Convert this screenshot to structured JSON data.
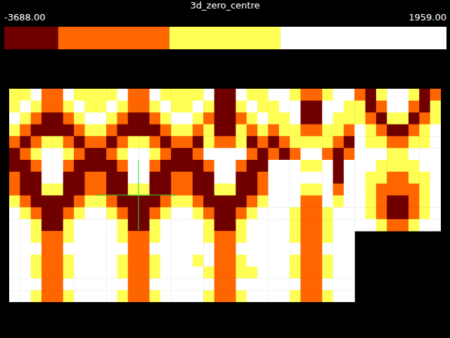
{
  "chart_data": {
    "type": "heatmap",
    "title": "3d_zero_centre",
    "colorbar_range": [
      -3688,
      1959
    ],
    "colorbar_ticks": [
      {
        "value": -3688,
        "label": "-3688.00"
      },
      {
        "value": 1959,
        "label": "1959.00"
      }
    ],
    "color_thresholds": [
      -3000,
      -1580,
      -160
    ],
    "colors": [
      "#700000",
      "#ff6600",
      "#ffff55",
      "#ffffff"
    ],
    "cells": [
      [
        [
          -900,
          -900,
          1000,
          -2300,
          -2300,
          1000,
          -900,
          -900
        ],
        [
          -900,
          1000,
          -900,
          -2300,
          -2300,
          -900,
          1000,
          -900
        ],
        [
          1000,
          -900,
          -2300,
          -3300,
          -3300,
          -2300,
          -900,
          1000
        ],
        [
          -900,
          -2300,
          -3300,
          -3300,
          -3300,
          -3300,
          -2300,
          -900
        ],
        [
          -2300,
          -3300,
          -2300,
          -900,
          -900,
          -2300,
          -3300,
          -2300
        ],
        [
          -3300,
          -2300,
          -900,
          1000,
          1000,
          -900,
          -2300,
          -3300
        ]
      ],
      [
        [
          -900,
          -900,
          1000,
          -2300,
          -2300,
          1000,
          -900,
          -900
        ],
        [
          -900,
          1000,
          -900,
          -2300,
          -2300,
          -900,
          1000,
          -900
        ],
        [
          1000,
          -900,
          -2300,
          -3300,
          -3300,
          -2300,
          -900,
          1000
        ],
        [
          -900,
          -2300,
          -3300,
          -3300,
          -3300,
          -3300,
          -2300,
          -900
        ],
        [
          -2300,
          -3300,
          -2300,
          -900,
          -900,
          -2300,
          -3300,
          -2300
        ],
        [
          -3300,
          -2300,
          -900,
          1000,
          1000,
          -900,
          -2300,
          -3300
        ]
      ],
      [
        [
          -900,
          -900,
          1000,
          -3300,
          -3300,
          1000,
          -900,
          -900
        ],
        [
          -900,
          1000,
          -900,
          -3300,
          -3300,
          -900,
          1000,
          -900
        ],
        [
          1000,
          -900,
          -2300,
          -3300,
          -3300,
          -2300,
          -900,
          1000
        ],
        [
          -900,
          -2300,
          -900,
          -3300,
          -3300,
          -900,
          -2300,
          -900
        ],
        [
          -2300,
          -3300,
          -900,
          -2300,
          -2300,
          -900,
          -3300,
          -2300
        ],
        [
          -3300,
          -2300,
          1000,
          1000,
          1000,
          1000,
          -2300,
          -3300
        ]
      ],
      [
        [
          1000,
          1000,
          -900,
          -2300,
          -2300,
          -900,
          1000,
          1000
        ],
        [
          -900,
          1000,
          1000,
          -3300,
          -3300,
          1000,
          1000,
          -900
        ],
        [
          -900,
          -900,
          1000,
          -3300,
          -3300,
          1000,
          -900,
          -900
        ],
        [
          -2300,
          -900,
          -900,
          -2300,
          -2300,
          -900,
          -900,
          -2300
        ],
        [
          -3300,
          -2300,
          -900,
          -900,
          -900,
          -900,
          -2300,
          -3300
        ],
        [
          -2300,
          -3300,
          -2300,
          1000,
          1000,
          -2300,
          -3300,
          -2300
        ]
      ],
      [
        [
          -2300,
          -3300,
          -900,
          1000,
          1000,
          -900,
          -3300,
          -2300
        ],
        [
          -900,
          -3300,
          -2300,
          1000,
          1000,
          -2300,
          -3300,
          -900
        ],
        [
          -900,
          -2300,
          -3300,
          -900,
          -900,
          -3300,
          -2300,
          -900
        ],
        [
          1000,
          -900,
          -2300,
          -3300,
          -3300,
          -2300,
          -900,
          1000
        ],
        [
          1000,
          -900,
          -900,
          -2300,
          -2300,
          -900,
          -900,
          1000
        ],
        [
          1000,
          1000,
          1000,
          -900,
          -900,
          1000,
          1000,
          1000
        ]
      ],
      [
        [
          -3300,
          -3300,
          -2300,
          1000,
          1000,
          -2300,
          -3300,
          -3300
        ],
        [
          -2300,
          -3300,
          -3300,
          1000,
          1000,
          -3300,
          -3300,
          -2300
        ],
        [
          -2300,
          -3300,
          -3300,
          -900,
          -900,
          -3300,
          -3300,
          -2300
        ],
        [
          -900,
          -2300,
          -3300,
          -3300,
          -3300,
          -3300,
          -2300,
          -900
        ],
        [
          1000,
          -900,
          -2300,
          -3300,
          -3300,
          -2300,
          -900,
          1000
        ],
        [
          1000,
          1000,
          -900,
          -3300,
          -3300,
          -900,
          1000,
          1000
        ]
      ],
      [
        [
          -3300,
          -3300,
          -2300,
          1000,
          1000,
          -2300,
          -3300,
          -3300
        ],
        [
          -2300,
          -3300,
          -3300,
          1000,
          1000,
          -3300,
          -3300,
          -2300
        ],
        [
          -2300,
          -3300,
          -3300,
          -900,
          -900,
          -3300,
          -3300,
          -2300
        ],
        [
          -900,
          -2300,
          -3300,
          -3300,
          -3300,
          -3300,
          -2300,
          -900
        ],
        [
          1000,
          -900,
          -2300,
          -3300,
          -3300,
          -2300,
          -900,
          1000
        ],
        [
          1000,
          1000,
          -900,
          -3300,
          -3300,
          -900,
          1000,
          1000
        ]
      ],
      [
        [
          -3300,
          -3300,
          -2300,
          1000,
          1000,
          -2300,
          -3300,
          -3300
        ],
        [
          -2300,
          -3300,
          -3300,
          1000,
          1000,
          -3300,
          -3300,
          -2300
        ],
        [
          -2300,
          -3300,
          -3300,
          -900,
          -900,
          -3300,
          -3300,
          -2300
        ],
        [
          -900,
          -2300,
          -3300,
          -3300,
          -3300,
          -3300,
          -2300,
          -900
        ],
        [
          1000,
          -900,
          -2300,
          -3300,
          -3300,
          -2300,
          -900,
          1000
        ],
        [
          1000,
          1000,
          -900,
          -3300,
          -3300,
          -900,
          1000,
          1000
        ]
      ],
      [
        [
          1000,
          1000,
          1000,
          -900,
          -900,
          1000,
          -3300,
          1000
        ],
        [
          1000,
          1000,
          1000,
          1000,
          1000,
          1000,
          -3300,
          1000
        ],
        [
          1000,
          1000,
          1000,
          -900,
          -900,
          1000,
          -2300,
          1000
        ],
        [
          1000,
          1000,
          1000,
          -2300,
          -2300,
          1000,
          -900,
          1000
        ],
        [
          1000,
          1000,
          -900,
          -2300,
          -2300,
          -900,
          1000,
          1000
        ],
        [
          1000,
          1000,
          -900,
          -2300,
          -2300,
          -900,
          1000,
          1000
        ]
      ],
      [
        [
          1000,
          1000,
          -900,
          -900,
          -900,
          -900,
          1000,
          1000
        ],
        [
          1000,
          -900,
          -900,
          -2300,
          -2300,
          -900,
          -900,
          1000
        ],
        [
          1000,
          -900,
          -2300,
          -2300,
          -2300,
          -2300,
          -900,
          1000
        ],
        [
          1000,
          -900,
          -2300,
          -3300,
          -3300,
          -2300,
          -900,
          1000
        ],
        [
          1000,
          -900,
          -2300,
          -3300,
          -3300,
          -2300,
          -900,
          1000
        ],
        [
          1000,
          1000,
          -900,
          -2300,
          -2300,
          -900,
          1000,
          1000
        ]
      ],
      [
        [
          1000,
          1000,
          -900,
          -2300,
          -2300,
          -900,
          1000,
          1000
        ],
        [
          1000,
          1000,
          1000,
          -2300,
          -2300,
          1000,
          1000,
          1000
        ],
        [
          1000,
          1000,
          -900,
          -2300,
          -2300,
          -900,
          1000,
          1000
        ],
        [
          1000,
          1000,
          -900,
          -2300,
          -2300,
          -900,
          1000,
          1000
        ],
        [
          1000,
          1000,
          1000,
          -2300,
          -2300,
          1000,
          1000,
          1000
        ],
        [
          1000,
          1000,
          -900,
          -2300,
          -2300,
          -900,
          1000,
          1000
        ]
      ],
      [
        [
          1000,
          1000,
          -900,
          -2300,
          -2300,
          -900,
          1000,
          1000
        ],
        [
          1000,
          1000,
          1000,
          -2300,
          -2300,
          1000,
          1000,
          1000
        ],
        [
          1000,
          1000,
          -900,
          -2300,
          -2300,
          -900,
          1000,
          1000
        ],
        [
          1000,
          1000,
          -900,
          -2300,
          -2300,
          -900,
          1000,
          1000
        ],
        [
          1000,
          1000,
          1000,
          -2300,
          -2300,
          1000,
          1000,
          1000
        ],
        [
          1000,
          1000,
          -900,
          -2300,
          -2300,
          -900,
          1000,
          1000
        ]
      ],
      [
        [
          1000,
          1000,
          -900,
          -2300,
          -2300,
          -900,
          1000,
          1000
        ],
        [
          1000,
          1000,
          1000,
          -2300,
          -2300,
          1000,
          1000,
          1000
        ],
        [
          1000,
          -900,
          1000,
          -2300,
          -2300,
          -900,
          1000,
          1000
        ],
        [
          1000,
          1000,
          -900,
          -2300,
          -2300,
          -900,
          -900,
          1000
        ],
        [
          1000,
          1000,
          1000,
          -2300,
          -2300,
          1000,
          1000,
          1000
        ],
        [
          1000,
          1000,
          -900,
          -2300,
          -2300,
          -900,
          1000,
          1000
        ]
      ],
      [
        [
          1000,
          1000,
          -900,
          -2300,
          -2300,
          -900,
          1000,
          1000
        ],
        [
          1000,
          1000,
          1000,
          -2300,
          -2300,
          1000,
          1000,
          1000
        ],
        [
          1000,
          1000,
          -900,
          -2300,
          -2300,
          -900,
          1000,
          1000
        ],
        [
          1000,
          1000,
          -900,
          -2300,
          -2300,
          -900,
          1000,
          1000
        ],
        [
          1000,
          1000,
          1000,
          -2300,
          -2300,
          1000,
          1000,
          1000
        ],
        [
          1000,
          1000,
          -900,
          -2300,
          -2300,
          -900,
          1000,
          1000
        ]
      ]
    ]
  }
}
